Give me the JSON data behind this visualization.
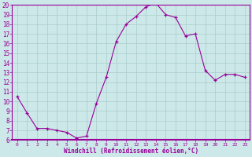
{
  "x": [
    0,
    1,
    2,
    3,
    4,
    5,
    6,
    7,
    8,
    9,
    10,
    11,
    12,
    13,
    14,
    15,
    16,
    17,
    18,
    19,
    20,
    21,
    22,
    23
  ],
  "y": [
    10.5,
    8.8,
    7.2,
    7.2,
    7.0,
    6.8,
    6.2,
    6.4,
    9.8,
    12.5,
    16.2,
    18.0,
    18.8,
    19.8,
    20.2,
    19.0,
    18.7,
    16.8,
    17.0,
    13.2,
    12.2,
    12.8,
    12.8,
    12.5
  ],
  "line_color": "#990099",
  "marker": "+",
  "marker_color": "#990099",
  "bg_color": "#cce8e8",
  "grid_color": "#aacccc",
  "xlabel": "Windchill (Refroidissement éolien,°C)",
  "xlabel_color": "#990099",
  "tick_color": "#990099",
  "ylim": [
    6,
    20
  ],
  "xlim": [
    -0.5,
    23.5
  ],
  "yticks": [
    6,
    7,
    8,
    9,
    10,
    11,
    12,
    13,
    14,
    15,
    16,
    17,
    18,
    19,
    20
  ],
  "xticks": [
    0,
    1,
    2,
    3,
    4,
    5,
    6,
    7,
    8,
    9,
    10,
    11,
    12,
    13,
    14,
    15,
    16,
    17,
    18,
    19,
    20,
    21,
    22,
    23
  ],
  "spine_color": "#990099",
  "axis_bg_color": "#cce8e8",
  "title_bg_color": "#7700aa"
}
